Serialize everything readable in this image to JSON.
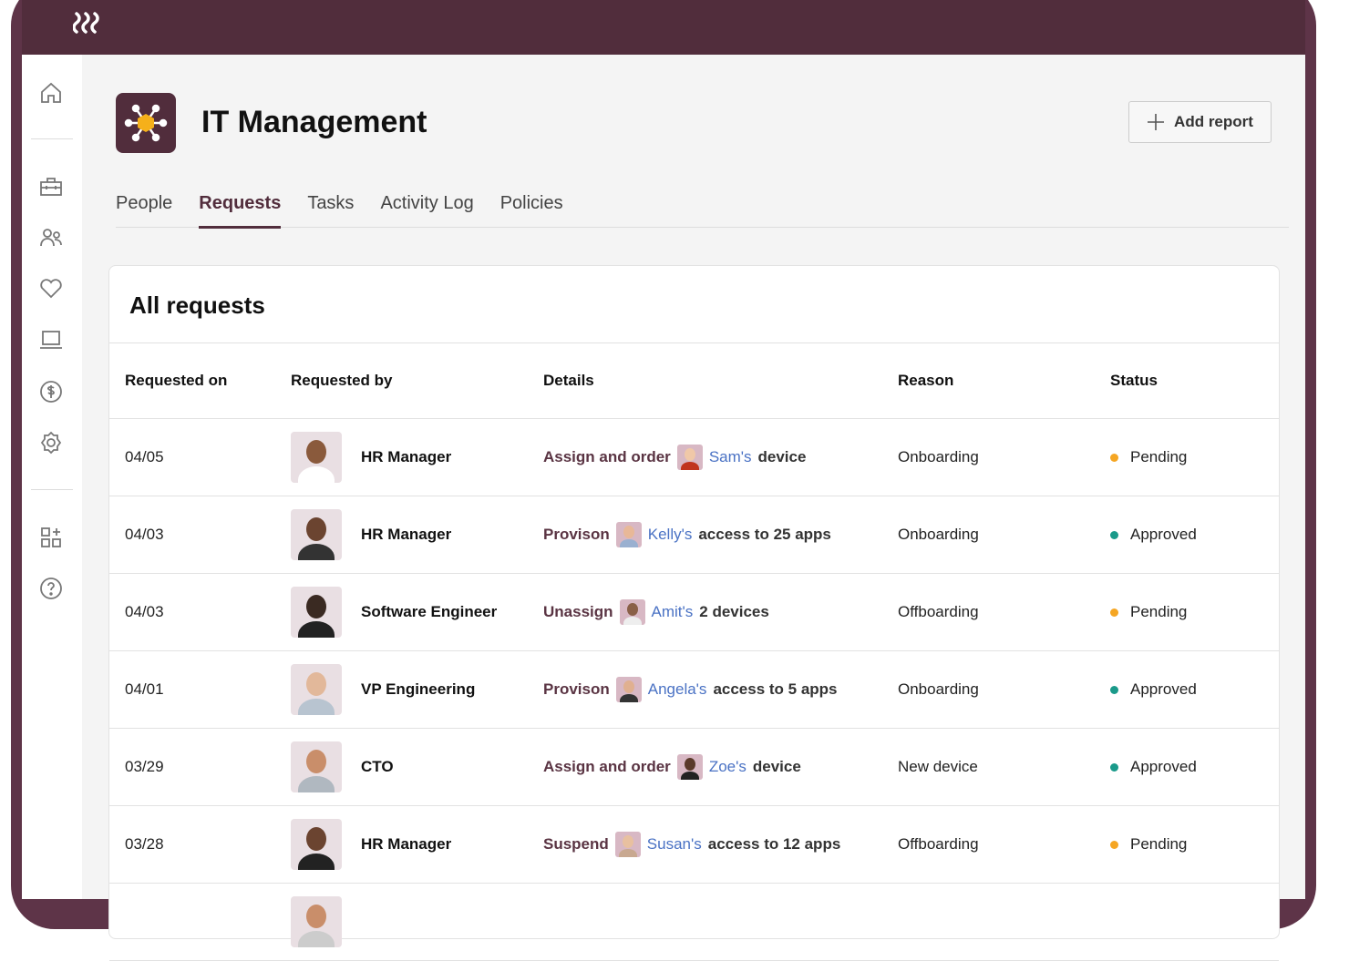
{
  "logo": "⌇⌇⌇",
  "colors": {
    "brand": "#512d3c",
    "accent": "#f5b01a",
    "pending": "#f5a623",
    "approved": "#1a9a8a",
    "link": "#4a72c4"
  },
  "sidebar": {
    "icons": [
      "home-icon",
      "briefcase-icon",
      "people-icon",
      "heart-icon",
      "laptop-icon",
      "dollar-icon",
      "gear-icon",
      "apps-add-icon",
      "help-icon"
    ]
  },
  "header": {
    "title": "IT Management",
    "add_report": "Add report"
  },
  "tabs": [
    {
      "label": "People"
    },
    {
      "label": "Requests",
      "active": true
    },
    {
      "label": "Tasks"
    },
    {
      "label": "Activity Log"
    },
    {
      "label": "Policies"
    }
  ],
  "table": {
    "title": "All requests",
    "columns": [
      "Requested on",
      "Requested by",
      "Details",
      "Reason",
      "Status"
    ],
    "rows": [
      {
        "date": "04/05",
        "by": "HR Manager",
        "action": "Assign and order",
        "person": "Sam's",
        "rest": "device",
        "reason": "Onboarding",
        "status": "Pending"
      },
      {
        "date": "04/03",
        "by": "HR Manager",
        "action": "Provison",
        "person": "Kelly's",
        "rest": "access to 25 apps",
        "reason": "Onboarding",
        "status": "Approved"
      },
      {
        "date": "04/03",
        "by": "Software Engineer",
        "action": "Unassign",
        "person": "Amit's",
        "rest": "2 devices",
        "reason": "Offboarding",
        "status": "Pending"
      },
      {
        "date": "04/01",
        "by": "VP Engineering",
        "action": "Provison",
        "person": "Angela's",
        "rest": "access to 5 apps",
        "reason": "Onboarding",
        "status": "Approved"
      },
      {
        "date": "03/29",
        "by": "CTO",
        "action": "Assign and order",
        "person": "Zoe's",
        "rest": "device",
        "reason": "New device",
        "status": "Approved"
      },
      {
        "date": "03/28",
        "by": "HR Manager",
        "action": "Suspend",
        "person": "Susan's",
        "rest": "access to 12 apps",
        "reason": "Offboarding",
        "status": "Pending"
      }
    ]
  }
}
